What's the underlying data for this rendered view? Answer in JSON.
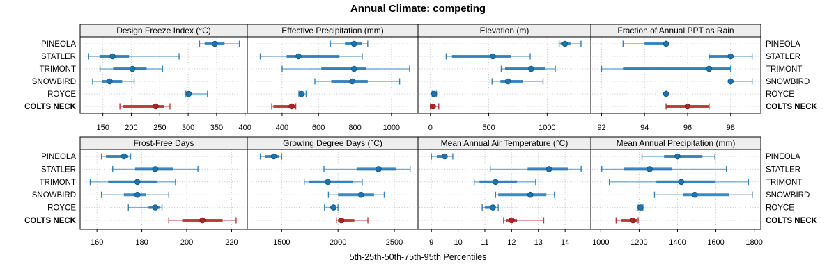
{
  "title": "Annual Climate: competing",
  "xlabel": "5th-25th-50th-75th-95th Percentiles",
  "categories": [
    "PINEOLA",
    "STATLER",
    "TRIMONT",
    "SNOWBIRD",
    "ROYCE",
    "COLTS NECK"
  ],
  "highlight_category": "COLTS NECK",
  "colors": {
    "series": "#1c74b4",
    "series_dot_edge": "#14577f",
    "highlight": "#b22222",
    "highlight_dot_edge": "#8b1a1a",
    "strip_bg": "#ededed",
    "panel_border": "#000000",
    "grid": "#c3c3c3",
    "text": "#000000"
  },
  "chart_data": {
    "type": "dotplot",
    "layout_grid": "2 rows x 4 cols",
    "legend_position": "none",
    "grid_style": "dotted",
    "percentile_labels": [
      "5th",
      "25th",
      "50th",
      "75th",
      "95th"
    ],
    "panels": [
      {
        "title": "Design Freeze Index (°C)",
        "ticks": [
          150,
          200,
          250,
          300,
          350,
          400
        ],
        "xlim": [
          110,
          404
        ],
        "series": [
          {
            "name": "PINEOLA",
            "values": [
              320,
              329,
              347,
              364,
              390
            ]
          },
          {
            "name": "STATLER",
            "values": [
              125,
              144,
              167,
              196,
              284
            ]
          },
          {
            "name": "TRIMONT",
            "values": [
              145,
              168,
              202,
              227,
              255
            ]
          },
          {
            "name": "SNOWBIRD",
            "values": [
              132,
              149,
              162,
              184,
              205
            ]
          },
          {
            "name": "ROYCE",
            "values": [
              296,
              298,
              301,
              307,
              334
            ]
          },
          {
            "name": "COLTS NECK",
            "values": [
              180,
              186,
              243,
              257,
              268
            ]
          }
        ]
      },
      {
        "title": "Effective Precipitation (mm)",
        "ticks": [
          400,
          600,
          800,
          1000
        ],
        "xlim": [
          209,
          1146
        ],
        "series": [
          {
            "name": "PINEOLA",
            "values": [
              665,
              745,
              795,
              840,
              870
            ]
          },
          {
            "name": "STATLER",
            "values": [
              280,
              425,
              490,
              715,
              840
            ]
          },
          {
            "name": "TRIMONT",
            "values": [
              400,
              615,
              795,
              860,
              1100
            ]
          },
          {
            "name": "SNOWBIRD",
            "values": [
              580,
              670,
              785,
              870,
              1045
            ]
          },
          {
            "name": "ROYCE",
            "values": [
              492,
              500,
              507,
              513,
              532
            ]
          },
          {
            "name": "COLTS NECK",
            "values": [
              343,
              352,
              453,
              472,
              475
            ]
          }
        ]
      },
      {
        "title": "Elevation (m)",
        "ticks": [
          0,
          500,
          1000
        ],
        "xlim": [
          -106,
          1374
        ],
        "series": [
          {
            "name": "PINEOLA",
            "values": [
              1103,
              1115,
              1153,
              1200,
              1290
            ]
          },
          {
            "name": "STATLER",
            "values": [
              135,
              185,
              535,
              690,
              855
            ]
          },
          {
            "name": "TRIMONT",
            "values": [
              607,
              640,
              863,
              985,
              1070
            ]
          },
          {
            "name": "SNOWBIRD",
            "values": [
              528,
              600,
              665,
              790,
              965
            ]
          },
          {
            "name": "ROYCE",
            "values": [
              15,
              25,
              32,
              40,
              52
            ]
          },
          {
            "name": "COLTS NECK",
            "values": [
              0,
              10,
              22,
              40,
              72
            ]
          }
        ]
      },
      {
        "title": "Fraction of Annual PPT as Rain",
        "ticks": [
          92,
          94,
          96,
          98
        ],
        "xlim": [
          91.5,
          99.4
        ],
        "series": [
          {
            "name": "PINEOLA",
            "values": [
              93,
              94,
              95,
              95,
              95
            ]
          },
          {
            "name": "STATLER",
            "values": [
              97,
              97,
              98,
              98,
              99
            ]
          },
          {
            "name": "TRIMONT",
            "values": [
              92,
              93,
              97,
              98,
              98
            ]
          },
          {
            "name": "SNOWBIRD",
            "values": [
              98,
              98,
              98,
              98,
              99
            ]
          },
          {
            "name": "ROYCE",
            "values": [
              95,
              95,
              95,
              95,
              95
            ]
          },
          {
            "name": "COLTS NECK",
            "values": [
              95,
              95,
              96,
              97,
              97
            ]
          }
        ]
      },
      {
        "title": "Frost-Free Days",
        "ticks": [
          160,
          180,
          200,
          220
        ],
        "xlim": [
          152.5,
          227
        ],
        "series": [
          {
            "name": "PINEOLA",
            "values": [
              162,
              164,
              172,
              174,
              175
            ]
          },
          {
            "name": "STATLER",
            "values": [
              167,
              177,
              186,
              194,
              205
            ]
          },
          {
            "name": "TRIMONT",
            "values": [
              157,
              165,
              178,
              187,
              195
            ]
          },
          {
            "name": "SNOWBIRD",
            "values": [
              162,
              172,
              178,
              182,
              192
            ]
          },
          {
            "name": "ROYCE",
            "values": [
              174,
              183,
              186,
              188,
              189
            ]
          },
          {
            "name": "COLTS NECK",
            "values": [
              192,
              198,
              207,
              216,
              222
            ]
          }
        ]
      },
      {
        "title": "Growing Degree Days (°C)",
        "ticks": [
          1500,
          2000,
          2500
        ],
        "xlim": [
          1195,
          2710
        ],
        "series": [
          {
            "name": "PINEOLA",
            "values": [
              1310,
              1350,
              1430,
              1475,
              1500
            ]
          },
          {
            "name": "STATLER",
            "values": [
              1875,
              2165,
              2360,
              2515,
              2640
            ]
          },
          {
            "name": "TRIMONT",
            "values": [
              1700,
              1745,
              1910,
              2135,
              2215
            ]
          },
          {
            "name": "SNOWBIRD",
            "values": [
              1915,
              2000,
              2205,
              2320,
              2410
            ]
          },
          {
            "name": "ROYCE",
            "values": [
              1880,
              1925,
              1960,
              1985,
              2000
            ]
          },
          {
            "name": "COLTS NECK",
            "values": [
              1985,
              2000,
              2030,
              2145,
              2265
            ]
          }
        ]
      },
      {
        "title": "Mean Annual Air Temperature (°C)",
        "ticks": [
          9,
          10,
          11,
          12,
          13,
          14
        ],
        "xlim": [
          8.5,
          14.96
        ],
        "series": [
          {
            "name": "PINEOLA",
            "values": [
              9.0,
              9.2,
              9.5,
              9.6,
              9.8
            ]
          },
          {
            "name": "STATLER",
            "values": [
              11.2,
              12.6,
              13.4,
              14.1,
              14.6
            ]
          },
          {
            "name": "TRIMONT",
            "values": [
              10.6,
              10.8,
              11.4,
              12.2,
              12.9
            ]
          },
          {
            "name": "SNOWBIRD",
            "values": [
              11.4,
              11.5,
              12.7,
              13.3,
              13.6
            ]
          },
          {
            "name": "ROYCE",
            "values": [
              10.9,
              11.0,
              11.3,
              11.4,
              11.5
            ]
          },
          {
            "name": "COLTS NECK",
            "values": [
              11.7,
              11.8,
              12.0,
              12.2,
              13.2
            ]
          }
        ]
      },
      {
        "title": "Mean Annual Precipitation (mm)",
        "ticks": [
          1000,
          1200,
          1400,
          1600,
          1800
        ],
        "xlim": [
          948,
          1834
        ],
        "series": [
          {
            "name": "PINEOLA",
            "values": [
              1215,
              1330,
              1400,
              1530,
              1595
            ]
          },
          {
            "name": "STATLER",
            "values": [
              1005,
              1120,
              1255,
              1370,
              1655
            ]
          },
          {
            "name": "TRIMONT",
            "values": [
              1045,
              1290,
              1420,
              1595,
              1770
            ]
          },
          {
            "name": "SNOWBIRD",
            "values": [
              1280,
              1430,
              1490,
              1670,
              1790
            ]
          },
          {
            "name": "ROYCE",
            "values": [
              1195,
              1200,
              1207,
              1213,
              1220
            ]
          },
          {
            "name": "COLTS NECK",
            "values": [
              1080,
              1108,
              1168,
              1190,
              1195
            ]
          }
        ]
      }
    ]
  }
}
